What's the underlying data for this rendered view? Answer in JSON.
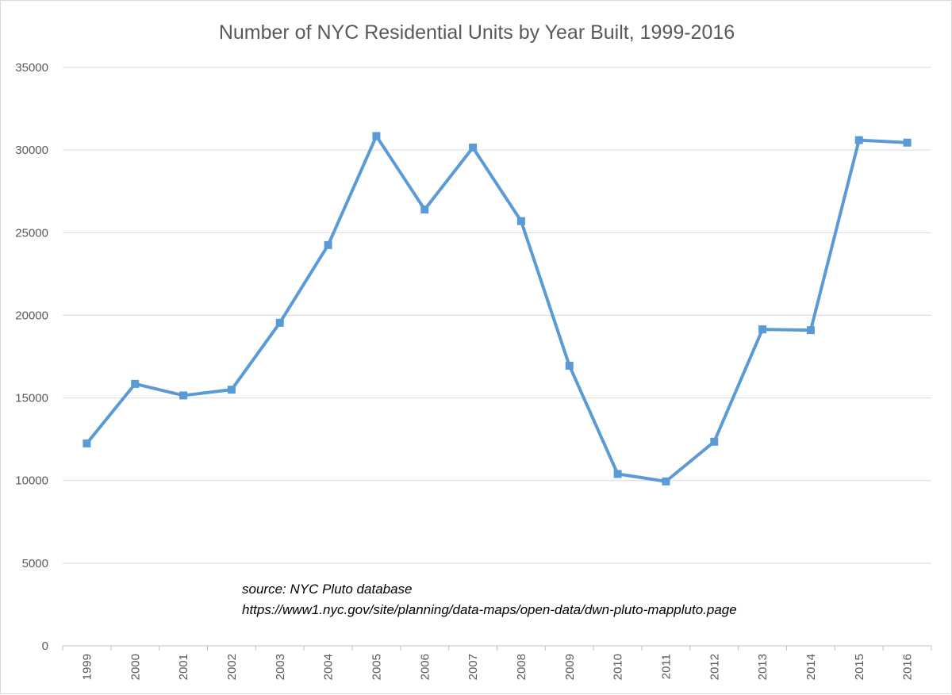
{
  "chart_data": {
    "type": "line",
    "title": "Number of NYC Residential Units by Year Built, 1999-2016",
    "xlabel": "",
    "ylabel": "",
    "categories": [
      "1999",
      "2000",
      "2001",
      "2002",
      "2003",
      "2004",
      "2005",
      "2006",
      "2007",
      "2008",
      "2009",
      "2010",
      "2011",
      "2012",
      "2013",
      "2014",
      "2015",
      "2016"
    ],
    "series": [
      {
        "name": "Residential Units",
        "color": "#5B9BD5",
        "values": [
          12250,
          15850,
          15150,
          15500,
          19550,
          24250,
          30850,
          26400,
          30150,
          25700,
          16950,
          10400,
          9950,
          12350,
          19150,
          19100,
          30600,
          30450
        ]
      }
    ],
    "ylim": [
      0,
      35000
    ],
    "yticks": [
      0,
      5000,
      10000,
      15000,
      20000,
      25000,
      30000,
      35000
    ],
    "ytick_labels": [
      "0",
      "5000",
      "10000",
      "15000",
      "20000",
      "25000",
      "30000",
      "35000"
    ],
    "grid": true,
    "legend": "none",
    "annotations": [
      "source: NYC Pluto database",
      "https://www1.nyc.gov/site/planning/data-maps/open-data/dwn-pluto-mappluto.page"
    ]
  }
}
